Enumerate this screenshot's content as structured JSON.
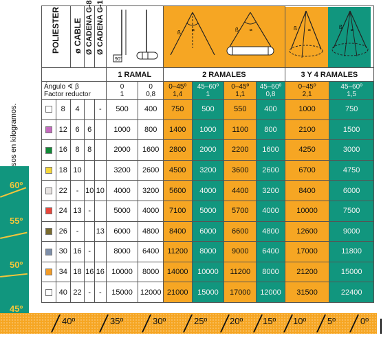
{
  "headers": {
    "poliester": "POLIESTER",
    "cable": "ø CABLE",
    "cadena_g8": "Ø CADENA G-8",
    "cadena_g10": "Ø CADENA G-10"
  },
  "sections": {
    "one": "1 RAMAL",
    "two": "2 RAMALES",
    "three_four": "3 Y 4 RAMALES"
  },
  "factor_label_line1": "Ángulo ∢ β",
  "factor_label_line2": "Factor reductor",
  "load_columns": [
    {
      "angle": "0",
      "factor": "1",
      "color": "white"
    },
    {
      "angle": "0",
      "factor": "0,8",
      "color": "white"
    },
    {
      "angle": "0–45º",
      "factor": "1,4",
      "color": "orange"
    },
    {
      "angle": "45–60º",
      "factor": "1",
      "color": "green"
    },
    {
      "angle": "0–45º",
      "factor": "1,1",
      "color": "orange"
    },
    {
      "angle": "45–60º",
      "factor": "0,8",
      "color": "green"
    },
    {
      "angle": "0–45º",
      "factor": "2,1",
      "color": "orange"
    },
    {
      "angle": "45–60º",
      "factor": "1,5",
      "color": "green"
    }
  ],
  "rows": [
    {
      "swatch": "#ffffff",
      "poliester": "8",
      "cable": "4",
      "g8": "",
      "g10": "-",
      "loads": [
        "500",
        "400",
        "750",
        "500",
        "550",
        "400",
        "1000",
        "750"
      ]
    },
    {
      "swatch": "#c56bbf",
      "poliester": "12",
      "cable": "6",
      "g8": "6",
      "g10": "",
      "loads": [
        "1000",
        "800",
        "1400",
        "1000",
        "1100",
        "800",
        "2100",
        "1500"
      ]
    },
    {
      "swatch": "#118a37",
      "poliester": "16",
      "cable": "8",
      "g8": "8",
      "g10": "",
      "loads": [
        "2000",
        "1600",
        "2800",
        "2000",
        "2200",
        "1600",
        "4250",
        "3000"
      ]
    },
    {
      "swatch": "#f5d63a",
      "poliester": "18",
      "cable": "10",
      "g8": "",
      "g10": "",
      "loads": [
        "3200",
        "2600",
        "4500",
        "3200",
        "3600",
        "2600",
        "6700",
        "4750"
      ]
    },
    {
      "swatch": "#e7e3e1",
      "poliester": "22",
      "cable": "-",
      "g8": "10",
      "g10": "10",
      "loads": [
        "4000",
        "3200",
        "5600",
        "4000",
        "4400",
        "3200",
        "8400",
        "6000"
      ]
    },
    {
      "swatch": "#e8463b",
      "poliester": "24",
      "cable": "13",
      "g8": "-",
      "g10": "",
      "loads": [
        "5000",
        "4000",
        "7100",
        "5000",
        "5700",
        "4000",
        "10000",
        "7500"
      ]
    },
    {
      "swatch": "#7a6b2f",
      "poliester": "26",
      "cable": "-",
      "g8": "",
      "g10": "13",
      "loads": [
        "6000",
        "4800",
        "8400",
        "6000",
        "6600",
        "4800",
        "12600",
        "9000"
      ]
    },
    {
      "swatch": "#7e8fa9",
      "poliester": "30",
      "cable": "16",
      "g8": "-",
      "g10": "",
      "loads": [
        "8000",
        "6400",
        "11200",
        "8000",
        "9000",
        "6400",
        "17000",
        "11800"
      ]
    },
    {
      "swatch": "#f39c27",
      "poliester": "34",
      "cable": "18",
      "g8": "16",
      "g10": "16",
      "loads": [
        "10000",
        "8000",
        "14000",
        "10000",
        "11200",
        "8000",
        "21200",
        "15000"
      ]
    },
    {
      "swatch": "#ffffff",
      "poliester": "40",
      "cable": "22",
      "g8": "-",
      "g10": "-",
      "loads": [
        "15000",
        "12000",
        "21000",
        "15000",
        "17000",
        "12000",
        "31500",
        "22400"
      ]
    }
  ],
  "side_caption": "• Diámetros expresados en milímetros y pesos en kilogramos.",
  "left_angles": [
    "60º",
    "55º",
    "50º",
    "45º"
  ],
  "bottom_angles": [
    "40º",
    "35º",
    "30º",
    "25º",
    "20º",
    "15º",
    "10º",
    "5º",
    "0º"
  ],
  "colors": {
    "orange": "#f6a623",
    "green": "#11967e",
    "angle_yellow": "#f3c63b"
  },
  "icons": [
    "single-leg-sling-icon",
    "two-leg-sling-icon",
    "three-four-leg-sling-icon"
  ]
}
